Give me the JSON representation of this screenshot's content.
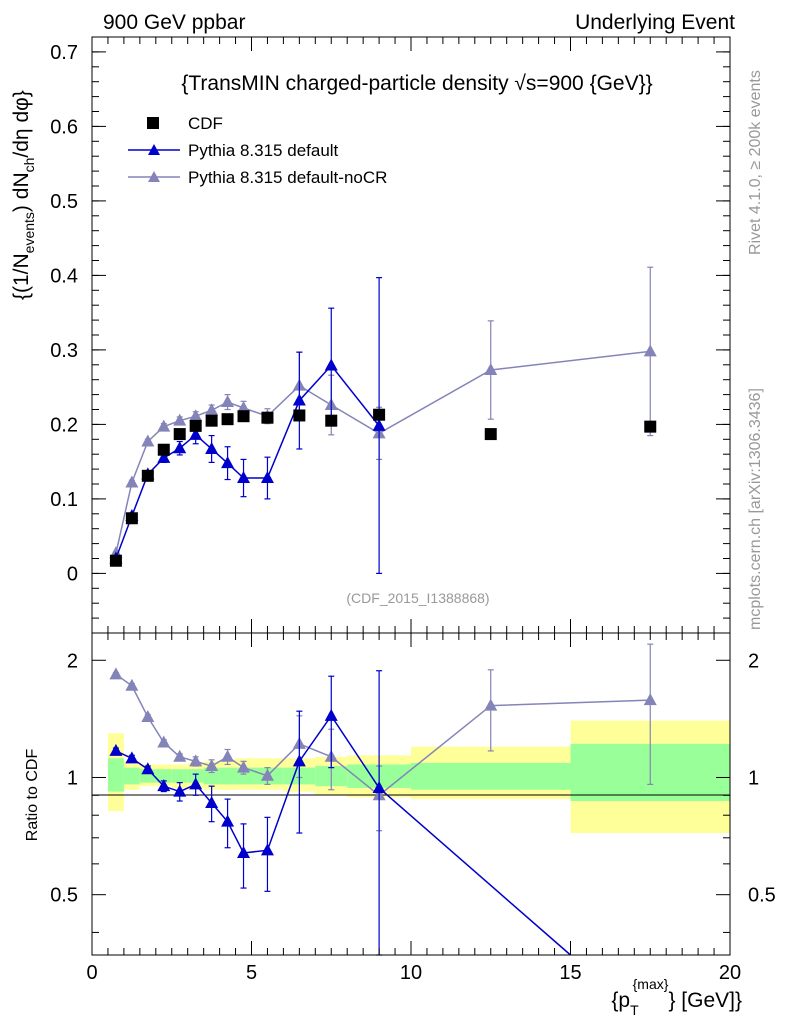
{
  "header": {
    "left": "900 GeV ppbar",
    "right": "Underlying Event"
  },
  "side_labels": {
    "rivet": "Rivet 4.1.0, ≥ 200k events",
    "mcplots": "mcplots.cern.ch [arXiv:1306.3436]"
  },
  "chart_data": [
    {
      "type": "scatter",
      "title": "{TransMIN charged-particle density √s=900 {GeV}}",
      "ylabel": "{(1/N_events) dN_ch/dη dφ}",
      "xlim": [
        0,
        20
      ],
      "ylim": [
        -0.08,
        0.72
      ],
      "yticks": [
        "0",
        "0.1",
        "0.2",
        "0.3",
        "0.4",
        "0.5",
        "0.6",
        "0.7"
      ],
      "watermark": "(CDF_2015_I1388868)",
      "legend": [
        "CDF",
        "Pythia 8.315 default",
        "Pythia 8.315 default-noCR"
      ],
      "legend_position": "top-left",
      "series": [
        {
          "name": "CDF",
          "color": "#000000",
          "marker": "square",
          "points": [
            {
              "x": 0.75,
              "y": 0.017
            },
            {
              "x": 1.25,
              "y": 0.074
            },
            {
              "x": 1.75,
              "y": 0.131
            },
            {
              "x": 2.25,
              "y": 0.166
            },
            {
              "x": 2.75,
              "y": 0.187
            },
            {
              "x": 3.25,
              "y": 0.198
            },
            {
              "x": 3.75,
              "y": 0.205
            },
            {
              "x": 4.25,
              "y": 0.207
            },
            {
              "x": 4.75,
              "y": 0.211
            },
            {
              "x": 5.5,
              "y": 0.209
            },
            {
              "x": 6.5,
              "y": 0.212
            },
            {
              "x": 7.5,
              "y": 0.205
            },
            {
              "x": 9.0,
              "y": 0.213
            },
            {
              "x": 12.5,
              "y": 0.187
            },
            {
              "x": 17.5,
              "y": 0.197
            }
          ]
        },
        {
          "name": "Pythia 8.315 default",
          "color": "#0000cc",
          "marker": "triangle",
          "points": [
            {
              "x": 0.75,
              "y": 0.02,
              "err": 0.002
            },
            {
              "x": 1.25,
              "y": 0.077,
              "err": 0.003
            },
            {
              "x": 1.75,
              "y": 0.133,
              "err": 0.004
            },
            {
              "x": 2.25,
              "y": 0.155,
              "err": 0.006
            },
            {
              "x": 2.75,
              "y": 0.168,
              "err": 0.009
            },
            {
              "x": 3.25,
              "y": 0.186,
              "err": 0.012
            },
            {
              "x": 3.75,
              "y": 0.167,
              "err": 0.018
            },
            {
              "x": 4.25,
              "y": 0.148,
              "err": 0.022
            },
            {
              "x": 4.75,
              "y": 0.128,
              "err": 0.025
            },
            {
              "x": 5.5,
              "y": 0.128,
              "err": 0.028
            },
            {
              "x": 6.5,
              "y": 0.232,
              "err": 0.065
            },
            {
              "x": 7.5,
              "y": 0.279,
              "err": 0.077
            },
            {
              "x": 9.0,
              "y": 0.198,
              "err": 0.199
            }
          ]
        },
        {
          "name": "Pythia 8.315 default-noCR",
          "color": "#8484b8",
          "marker": "triangle",
          "points": [
            {
              "x": 0.75,
              "y": 0.027,
              "err": 0.002
            },
            {
              "x": 1.25,
              "y": 0.122,
              "err": 0.003
            },
            {
              "x": 1.75,
              "y": 0.177,
              "err": 0.003
            },
            {
              "x": 2.25,
              "y": 0.197,
              "err": 0.004
            },
            {
              "x": 2.75,
              "y": 0.205,
              "err": 0.005
            },
            {
              "x": 3.25,
              "y": 0.211,
              "err": 0.006
            },
            {
              "x": 3.75,
              "y": 0.219,
              "err": 0.007
            },
            {
              "x": 4.25,
              "y": 0.23,
              "err": 0.01
            },
            {
              "x": 4.75,
              "y": 0.222,
              "err": 0.009
            },
            {
              "x": 5.5,
              "y": 0.211,
              "err": 0.01
            },
            {
              "x": 6.5,
              "y": 0.252,
              "err": 0.045
            },
            {
              "x": 7.5,
              "y": 0.226,
              "err": 0.04
            },
            {
              "x": 9.0,
              "y": 0.188,
              "err": 0.035
            },
            {
              "x": 12.5,
              "y": 0.273,
              "err": 0.066
            },
            {
              "x": 17.5,
              "y": 0.298,
              "err": 0.113
            }
          ]
        }
      ]
    },
    {
      "type": "scatter",
      "ylabel": "Ratio to CDF",
      "xlabel": "{p_T^{max}} [GeV]}",
      "xlim": [
        0,
        20
      ],
      "ylim": [
        0.35,
        2.35
      ],
      "xticks": [
        "0",
        "5",
        "10",
        "15",
        "20"
      ],
      "yticks": [
        "0.5",
        "1",
        "2"
      ],
      "bands": [
        {
          "x0": 0.5,
          "x1": 1.0,
          "g": [
            0.92,
            1.12
          ],
          "y": [
            0.82,
            1.3
          ]
        },
        {
          "x0": 1.0,
          "x1": 1.5,
          "g": [
            0.96,
            1.06
          ],
          "y": [
            0.93,
            1.1
          ]
        },
        {
          "x0": 1.5,
          "x1": 2.0,
          "g": [
            0.97,
            1.05
          ],
          "y": [
            0.95,
            1.08
          ]
        },
        {
          "x0": 2.0,
          "x1": 2.5,
          "g": [
            0.97,
            1.05
          ],
          "y": [
            0.95,
            1.08
          ]
        },
        {
          "x0": 2.5,
          "x1": 3.0,
          "g": [
            0.97,
            1.05
          ],
          "y": [
            0.94,
            1.08
          ]
        },
        {
          "x0": 3.0,
          "x1": 3.5,
          "g": [
            0.97,
            1.05
          ],
          "y": [
            0.94,
            1.09
          ]
        },
        {
          "x0": 3.5,
          "x1": 4.0,
          "g": [
            0.96,
            1.06
          ],
          "y": [
            0.93,
            1.1
          ]
        },
        {
          "x0": 4.0,
          "x1": 4.5,
          "g": [
            0.96,
            1.06
          ],
          "y": [
            0.93,
            1.11
          ]
        },
        {
          "x0": 4.5,
          "x1": 5.0,
          "g": [
            0.96,
            1.06
          ],
          "y": [
            0.93,
            1.12
          ]
        },
        {
          "x0": 5.0,
          "x1": 6.0,
          "g": [
            0.96,
            1.06
          ],
          "y": [
            0.93,
            1.12
          ]
        },
        {
          "x0": 6.0,
          "x1": 7.0,
          "g": [
            0.96,
            1.06
          ],
          "y": [
            0.92,
            1.12
          ]
        },
        {
          "x0": 7.0,
          "x1": 8.0,
          "g": [
            0.95,
            1.07
          ],
          "y": [
            0.9,
            1.13
          ]
        },
        {
          "x0": 8.0,
          "x1": 10.0,
          "g": [
            0.94,
            1.08
          ],
          "y": [
            0.89,
            1.14
          ]
        },
        {
          "x0": 10.0,
          "x1": 15.0,
          "g": [
            0.93,
            1.09
          ],
          "y": [
            0.88,
            1.2
          ]
        },
        {
          "x0": 15.0,
          "x1": 20.0,
          "g": [
            0.87,
            1.22
          ],
          "y": [
            0.72,
            1.4
          ]
        }
      ],
      "series": [
        {
          "name": "Pythia 8.315 default",
          "color": "#0000cc",
          "marker": "triangle",
          "points": [
            {
              "x": 0.75,
              "y": 1.17,
              "err": 0.02
            },
            {
              "x": 1.25,
              "y": 1.12,
              "err": 0.02
            },
            {
              "x": 1.75,
              "y": 1.05,
              "err": 0.02
            },
            {
              "x": 2.25,
              "y": 0.95,
              "err": 0.03
            },
            {
              "x": 2.75,
              "y": 0.92,
              "err": 0.05
            },
            {
              "x": 3.25,
              "y": 0.96,
              "err": 0.06
            },
            {
              "x": 3.75,
              "y": 0.86,
              "err": 0.09
            },
            {
              "x": 4.25,
              "y": 0.77,
              "err": 0.11
            },
            {
              "x": 4.75,
              "y": 0.64,
              "err": 0.12
            },
            {
              "x": 5.5,
              "y": 0.65,
              "err": 0.14
            },
            {
              "x": 6.5,
              "y": 1.1,
              "err": 0.38
            },
            {
              "x": 7.5,
              "y": 1.44,
              "err": 0.38
            },
            {
              "x": 9.0,
              "y": 0.94,
              "err": 0.94
            },
            {
              "x": 15.0,
              "y": 0.35
            }
          ]
        },
        {
          "name": "Pythia 8.315 default-noCR",
          "color": "#8484b8",
          "marker": "triangle",
          "points": [
            {
              "x": 0.75,
              "y": 1.84,
              "err": 0.02
            },
            {
              "x": 1.25,
              "y": 1.72,
              "err": 0.02
            },
            {
              "x": 1.75,
              "y": 1.43,
              "err": 0.02
            },
            {
              "x": 2.25,
              "y": 1.23,
              "err": 0.02
            },
            {
              "x": 2.75,
              "y": 1.13,
              "err": 0.02
            },
            {
              "x": 3.25,
              "y": 1.1,
              "err": 0.03
            },
            {
              "x": 3.75,
              "y": 1.07,
              "err": 0.04
            },
            {
              "x": 4.25,
              "y": 1.13,
              "err": 0.05
            },
            {
              "x": 4.75,
              "y": 1.06,
              "err": 0.04
            },
            {
              "x": 5.5,
              "y": 1.01,
              "err": 0.05
            },
            {
              "x": 6.5,
              "y": 1.22,
              "err": 0.22
            },
            {
              "x": 7.5,
              "y": 1.13,
              "err": 0.2
            },
            {
              "x": 9.0,
              "y": 0.9,
              "err": 0.17
            },
            {
              "x": 12.5,
              "y": 1.53,
              "err": 0.36
            },
            {
              "x": 17.5,
              "y": 1.58,
              "err": 0.62
            }
          ]
        }
      ]
    }
  ]
}
